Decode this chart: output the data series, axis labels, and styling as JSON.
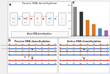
{
  "fig_bg": "#f0f0f0",
  "panel_bg": "#ffffff",
  "border_color": "#aaaaaa",
  "title_passive_top": "Passive DNA demethylation",
  "bar_values": [
    95,
    78,
    52,
    38,
    25,
    18
  ],
  "bar_colors": [
    "#888888",
    "#333333",
    "#e07820",
    "#e07820",
    "#4488cc",
    "#9966bb"
  ],
  "bar_label": "c",
  "panel_a_label": "a",
  "panel_b_label": "b",
  "passive_label": "Passive DNA demethylation",
  "active_label": "Active DNA demethylation",
  "dna_red": "#dd3333",
  "dna_blue": "#3366cc",
  "dna_gray": "#999999",
  "circle_yellow": "#f5c518",
  "circle_orange": "#e07820",
  "circle_blue": "#4488cc",
  "circle_purple": "#9944aa",
  "circle_gray": "#aaaaaa",
  "circle_green": "#44aa44",
  "active_demeth_text": "Active DNA demethylation"
}
